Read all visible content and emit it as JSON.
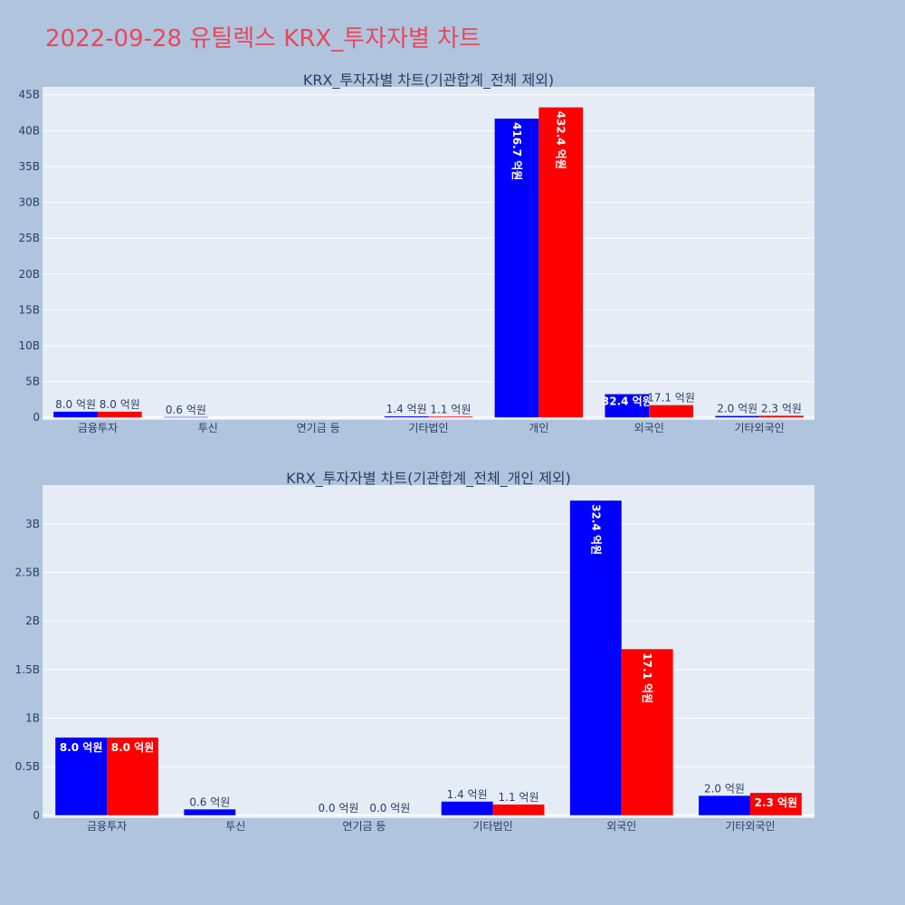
{
  "page": {
    "title": "2022-09-28 유틸렉스 KRX_투자자별 차트",
    "title_color": "#e8485b",
    "background": "#b0c4de",
    "plot_background": "#e5ecf6"
  },
  "series_colors": [
    "#0000ff",
    "#ff0000"
  ],
  "chart_data": [
    {
      "type": "bar",
      "title": "KRX_투자자별 차트(기관합계_전체 제외)",
      "categories": [
        "금융투자",
        "투신",
        "연기금 등",
        "기타법인",
        "개인",
        "외국인",
        "기타외국인"
      ],
      "series": [
        {
          "values": [
            0.8,
            0.06,
            0,
            0.14,
            41.67,
            3.24,
            0.2
          ],
          "labels": [
            "8.0 억원",
            "0.6 억원",
            "",
            "1.4 억원",
            "416.7 억원",
            "32.4 억원",
            "2.0 억원"
          ]
        },
        {
          "values": [
            0.8,
            0,
            0,
            0.11,
            43.24,
            1.71,
            0.23
          ],
          "labels": [
            "8.0 억원",
            "",
            "",
            "1.1 억원",
            "432.4 억원",
            "17.1 억원",
            "2.3 억원"
          ]
        }
      ],
      "yticks": [
        0,
        5,
        10,
        15,
        20,
        25,
        30,
        35,
        40,
        45
      ],
      "ytick_labels": [
        "0",
        "5B",
        "10B",
        "15B",
        "20B",
        "25B",
        "30B",
        "35B",
        "40B",
        "45B"
      ],
      "ylim": [
        -0.35,
        46.1
      ],
      "grid": true
    },
    {
      "type": "bar",
      "title": "KRX_투자자별 차트(기관합계_전체_개인 제외)",
      "categories": [
        "금융투자",
        "투신",
        "연기금 등",
        "기타법인",
        "외국인",
        "기타외국인"
      ],
      "series": [
        {
          "values": [
            0.8,
            0.06,
            0,
            0.14,
            3.24,
            0.2
          ],
          "labels": [
            "8.0 억원",
            "0.6 억원",
            "0.0 억원",
            "1.4 억원",
            "32.4 억원",
            "2.0 억원"
          ]
        },
        {
          "values": [
            0.8,
            0,
            0,
            0.11,
            1.71,
            0.23
          ],
          "labels": [
            "8.0 억원",
            "",
            "0.0 억원",
            "1.1 억원",
            "17.1 억원",
            "2.3 억원"
          ]
        }
      ],
      "yticks": [
        0,
        0.5,
        1,
        1.5,
        2,
        2.5,
        3
      ],
      "ytick_labels": [
        "0",
        "0.5B",
        "1B",
        "1.5B",
        "2B",
        "2.5B",
        "3B"
      ],
      "ylim": [
        -0.03,
        3.4
      ],
      "grid": true
    }
  ]
}
